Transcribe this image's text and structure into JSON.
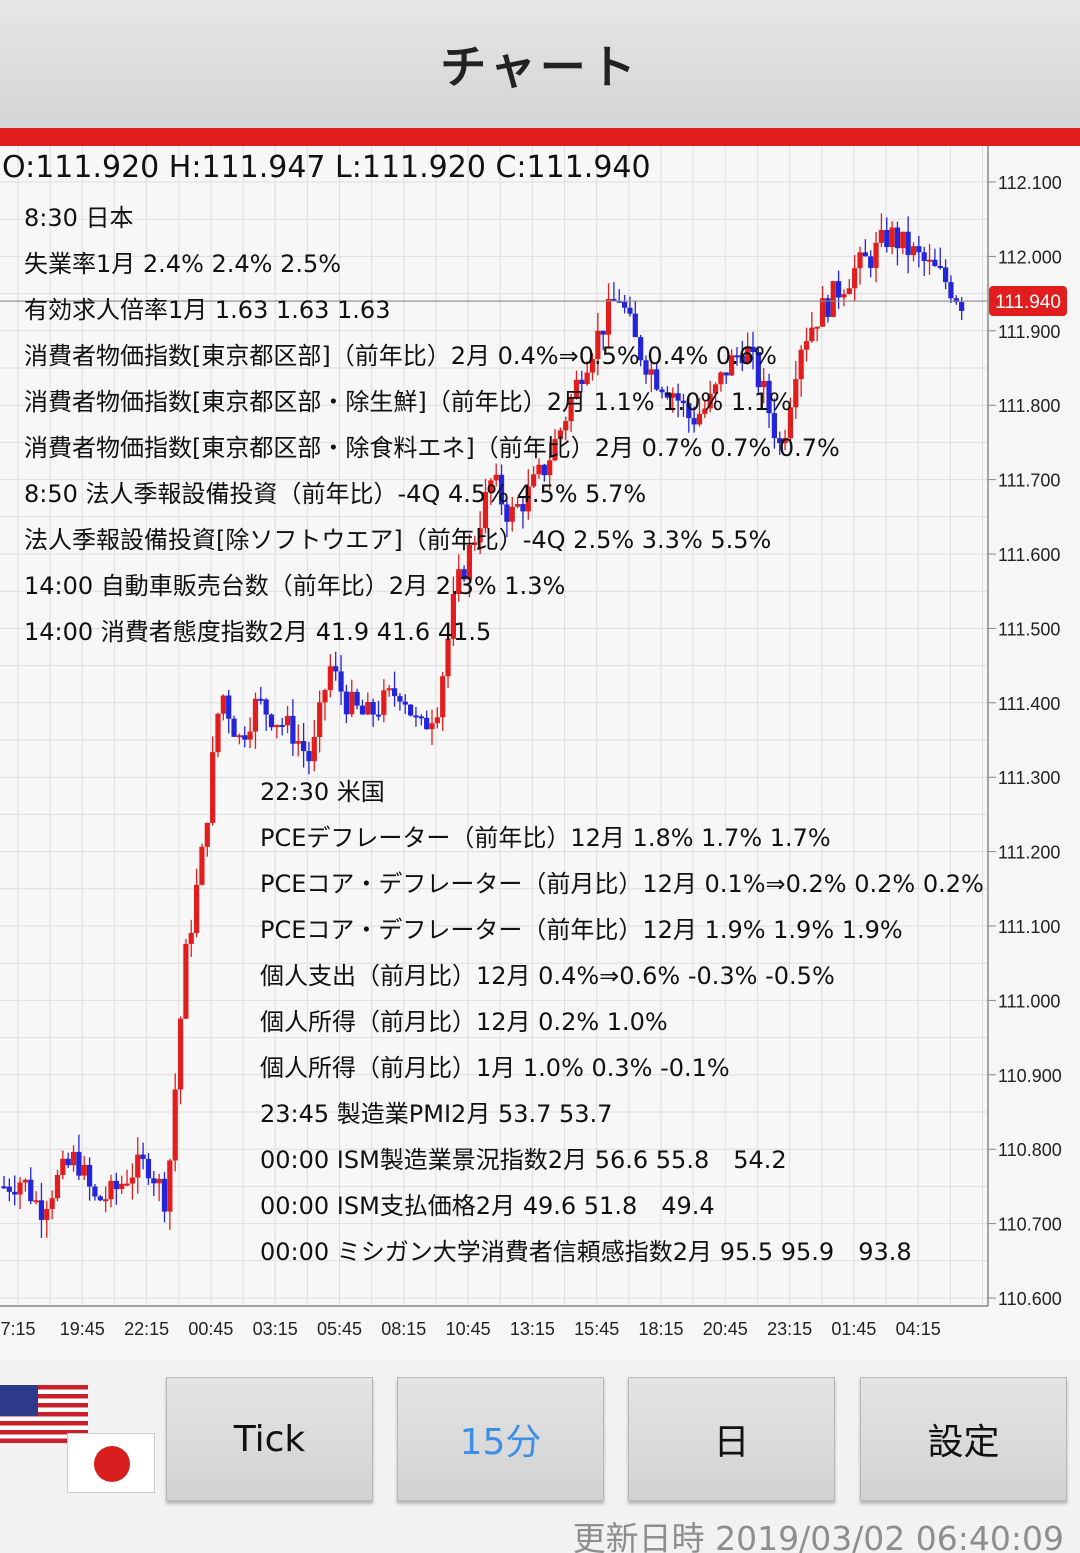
{
  "header": {
    "title": "チャート"
  },
  "ohlc": {
    "text": "O:111.920 H:111.947 L:111.920 C:111.940"
  },
  "events_jp": [
    "8:30 日本",
    "失業率1月 2.4% 2.4% 2.5%",
    "有効求人倍率1月 1.63 1.63 1.63",
    "消費者物価指数[東京都区部]（前年比）2月 0.4%⇒0.5% 0.4% 0.6%",
    "消費者物価指数[東京都区部・除生鮮]（前年比）2月 1.1% 1.0% 1.1%",
    "消費者物価指数[東京都区部・除食料エネ]（前年比）2月 0.7% 0.7% 0.7%",
    "8:50 法人季報設備投資（前年比）-4Q 4.5% 4.5% 5.7%",
    "  法人季報設備投資[除ソフトウエア]（前年比）-4Q 2.5% 3.3% 5.5%",
    "14:00 自動車販売台数（前年比）2月 2.3% 1.3%",
    "14:00 消費者態度指数2月 41.9 41.6 41.5"
  ],
  "events_us": [
    "22:30 米国",
    "PCEデフレーター（前年比）12月 1.8% 1.7% 1.7%",
    "PCEコア・デフレーター（前月比）12月 0.1%⇒0.2% 0.2% 0.2%",
    "PCEコア・デフレーター（前年比）12月 1.9% 1.9% 1.9%",
    "個人支出（前月比）12月 0.4%⇒0.6% -0.3% -0.5%",
    "個人所得（前月比）12月 0.2% 1.0%",
    "個人所得（前月比）1月 1.0% 0.3% -0.1%",
    "23:45 製造業PMI2月 53.7 53.7",
    "00:00 ISM製造業景況指数2月 56.6 55.8　54.2",
    "00:00 ISM支払価格2月 49.6 51.8　49.4",
    "00:00 ミシガン大学消費者信頼感指数2月 95.5 95.9　93.8"
  ],
  "chart_data": {
    "type": "candlestick",
    "y_ticks": [
      "112.100",
      "112.000",
      "111.900",
      "111.800",
      "111.700",
      "111.600",
      "111.500",
      "111.400",
      "111.300",
      "111.200",
      "111.100",
      "111.000",
      "110.900",
      "110.800",
      "110.700",
      "110.600"
    ],
    "x_ticks": [
      "7:15",
      "19:45",
      "22:15",
      "00:45",
      "03:15",
      "05:45",
      "08:15",
      "10:45",
      "13:15",
      "15:45",
      "18:15",
      "20:45",
      "23:15",
      "01:45",
      "04:15"
    ],
    "ylim": [
      110.6,
      112.1
    ],
    "current_price": "111.940",
    "grid": true,
    "colors": {
      "up": "#e21d1d",
      "down": "#2424d8",
      "price_label_bg": "#e21d1d"
    },
    "close_path": [
      110.75,
      110.76,
      110.72,
      110.76,
      110.79,
      110.73,
      110.74,
      110.77,
      110.78,
      110.73,
      111.05,
      111.2,
      111.42,
      111.35,
      111.4,
      111.38,
      111.36,
      111.32,
      111.45,
      111.4,
      111.38,
      111.4,
      111.42,
      111.36,
      111.4,
      111.55,
      111.62,
      111.7,
      111.65,
      111.68,
      111.72,
      111.78,
      111.85,
      111.9,
      111.95,
      111.88,
      111.84,
      111.82,
      111.78,
      111.8,
      111.85,
      111.88,
      111.82,
      111.74,
      111.88,
      111.92,
      111.95,
      111.98,
      112.0,
      112.03,
      112.01,
      111.99,
      111.97,
      111.94
    ]
  },
  "flags": [
    "us-flag-icon",
    "jp-flag-icon"
  ],
  "buttons": {
    "tick": "Tick",
    "min15": "15分",
    "day": "日",
    "settings": "設定"
  },
  "footer": {
    "updated": "更新日時 2019/03/02 06:40:09"
  }
}
